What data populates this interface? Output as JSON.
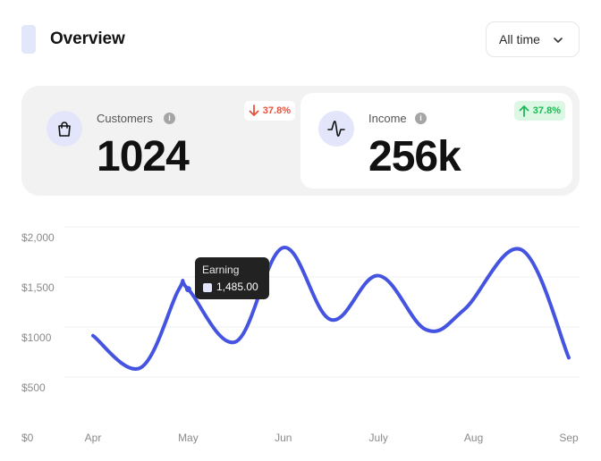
{
  "header": {
    "title": "Overview",
    "filter_label": "All time"
  },
  "stats": {
    "customers": {
      "label": "Customers",
      "value": "1024",
      "change": "37.8%",
      "trend": "down"
    },
    "income": {
      "label": "Income",
      "value": "256k",
      "change": "37.8%",
      "trend": "up"
    }
  },
  "tooltip": {
    "title": "Earning",
    "value": "1,485.00"
  },
  "colors": {
    "accent": "#4453e0",
    "icon_bg": "#e3e6fb",
    "down": "#e5533d",
    "up": "#1db954"
  },
  "chart_data": {
    "type": "line",
    "categories": [
      "Apr",
      "May",
      "Jun",
      "July",
      "Aug",
      "Sep"
    ],
    "y_ticks": [
      "$2,000",
      "$1,500",
      "$1000",
      "$500",
      "$0"
    ],
    "ylim": [
      0,
      2000
    ],
    "grid": true,
    "series": [
      {
        "name": "Earning",
        "x": [
          0,
          0.5,
          0.9,
          1.0,
          1.5,
          2.0,
          2.5,
          3.0,
          3.5,
          3.9,
          4.5,
          5.0
        ],
        "values": [
          1020,
          700,
          1480,
          1485,
          960,
          1900,
          1180,
          1620,
          1080,
          1280,
          1880,
          800
        ]
      }
    ],
    "highlight_index": 3
  }
}
